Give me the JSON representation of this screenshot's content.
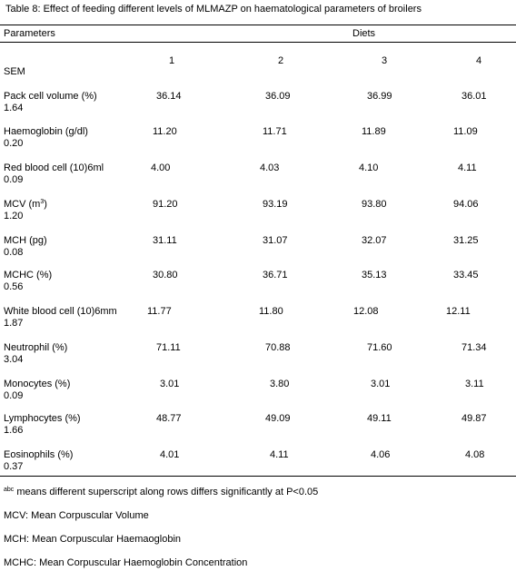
{
  "caption": "Table 8:  Effect of feeding different levels of MLMAZP on haematological parameters of broilers",
  "header": {
    "parameters": "Parameters",
    "diets": "Diets",
    "sem": "SEM",
    "diet_cols": [
      "1",
      "2",
      "3",
      "4"
    ]
  },
  "rows": [
    {
      "label": "Pack cell volume (%)",
      "values": [
        "36.14",
        "36.09",
        "36.99",
        "36.01"
      ],
      "sem": "1.64"
    },
    {
      "label": "Haemoglobin (g/dl)",
      "values": [
        "11.20",
        "11.71",
        "11.89",
        "11.09"
      ],
      "sem": "0.20"
    },
    {
      "label": "Red blood cell (10)6ml",
      "values": [
        "4.00",
        "4.03",
        "4.10",
        "4.11"
      ],
      "sem": "0.09"
    },
    {
      "label": "MCV (m",
      "label_sup": "3",
      "label_end": ")",
      "values": [
        "91.20",
        "93.19",
        "93.80",
        "94.06"
      ],
      "sem": "1.20"
    },
    {
      "label": "MCH (pg)",
      "values": [
        "31.11",
        "31.07",
        "32.07",
        "31.25"
      ],
      "sem": "0.08"
    },
    {
      "label": "MCHC (%)",
      "values": [
        "30.80",
        "36.71",
        "35.13",
        "33.45"
      ],
      "sem": "0.56"
    },
    {
      "label": "White blood cell (10)6mm",
      "values": [
        "11.77",
        "11.80",
        "12.08",
        "12.11"
      ],
      "sem": "1.87"
    },
    {
      "label": "Neutrophil (%)",
      "values": [
        "71.11",
        "70.88",
        "71.60",
        "71.34"
      ],
      "sem": "3.04"
    },
    {
      "label": "Monocytes (%)",
      "values": [
        "3.01",
        "3.80",
        "3.01",
        "3.11"
      ],
      "sem": "0.09"
    },
    {
      "label": "Lymphocytes (%)",
      "values": [
        "48.77",
        "49.09",
        "49.11",
        "49.87"
      ],
      "sem": "1.66"
    },
    {
      "label": "Eosinophils (%)",
      "values": [
        "4.01",
        "4.11",
        "4.06",
        "4.08"
      ],
      "sem": "0.37"
    }
  ],
  "footnotes": {
    "abc_sup": "abc",
    "abc_text": " means different superscript along rows differs significantly at P<0.05",
    "mcv": "MCV: Mean Corpuscular Volume",
    "mch": "MCH: Mean Corpuscular Haemaoglobin",
    "mchc": "MCHC: Mean Corpuscular Haemoglobin Concentration"
  }
}
